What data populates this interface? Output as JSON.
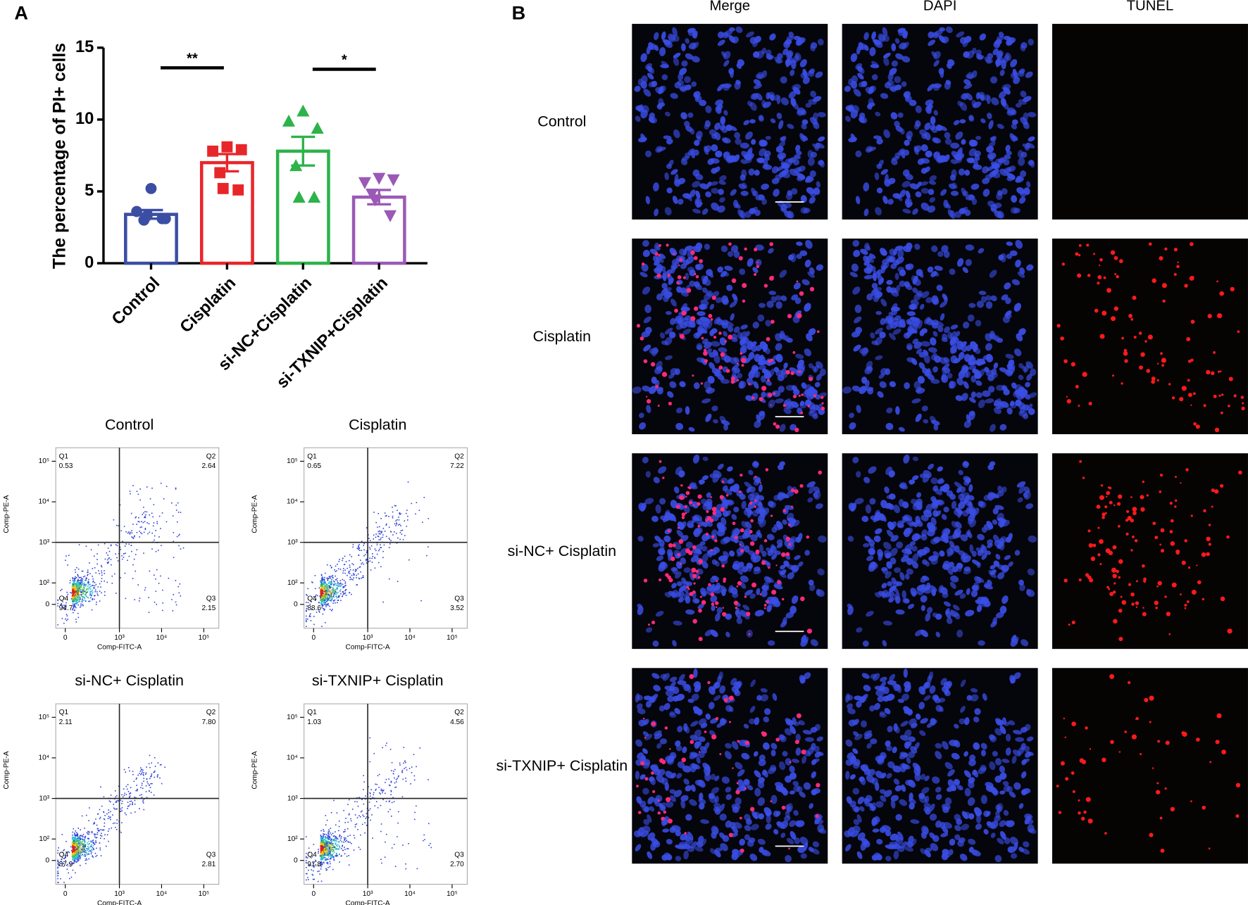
{
  "panel_labels": [
    "A",
    "B"
  ],
  "chart_data": {
    "type": "bar",
    "ylabel": "The percentage of PI+ cells",
    "categories": [
      "Control",
      "Cisplatin",
      "si-NC+Cisplatin",
      "si-TXNIP+Cisplatin"
    ],
    "values": [
      3.4,
      7.0,
      7.8,
      4.6
    ],
    "errors": [
      0.3,
      0.6,
      1.0,
      0.5
    ],
    "colors": [
      "#3b4ea3",
      "#e8262a",
      "#2db34a",
      "#9b59b6"
    ],
    "markers": [
      "circle",
      "square",
      "triangle-up",
      "triangle-down"
    ],
    "points": [
      [
        5.2,
        3.6,
        3.1,
        3.0,
        3.3,
        3.1
      ],
      [
        8.1,
        7.8,
        7.9,
        6.3,
        5.2,
        5.1
      ],
      [
        10.6,
        9.9,
        9.4,
        6.8,
        4.6,
        4.6
      ],
      [
        5.9,
        5.6,
        5.8,
        4.8,
        4.4,
        3.3
      ]
    ],
    "ylim": [
      0,
      15
    ],
    "yticks": [
      0,
      5,
      10,
      15
    ],
    "annotations": [
      {
        "label": "**",
        "from": 0,
        "to": 1,
        "y": 13.6
      },
      {
        "label": "*",
        "from": 2,
        "to": 3,
        "y": 13.5
      }
    ]
  },
  "flow": {
    "xlabel": "Comp-FITC-A",
    "ylabel": "Comp-PE-A",
    "scale": "biexponential",
    "xticks": [
      0,
      {
        "value": 1000,
        "label": "10³"
      },
      {
        "value": 10000,
        "label": "10⁴"
      },
      {
        "value": 100000,
        "label": "10⁵"
      }
    ],
    "yticks": [
      0,
      {
        "value": 100,
        "label": "10²"
      },
      {
        "value": 1000,
        "label": "10³"
      },
      {
        "value": 10000,
        "label": "10⁴"
      },
      {
        "value": 100000,
        "label": "10⁵"
      }
    ],
    "gate": [
      1000,
      1000
    ],
    "plots": [
      {
        "title": "Control",
        "quadrants": [
          {
            "name": "Q1",
            "value": 0.53
          },
          {
            "name": "Q2",
            "value": 2.64
          },
          {
            "name": "Q3",
            "value": 2.15
          },
          {
            "name": "Q4",
            "value": 94.7
          }
        ]
      },
      {
        "title": "Cisplatin",
        "quadrants": [
          {
            "name": "Q1",
            "value": 0.65
          },
          {
            "name": "Q2",
            "value": 7.22
          },
          {
            "name": "Q3",
            "value": 3.52
          },
          {
            "name": "Q4",
            "value": 88.6
          }
        ]
      },
      {
        "title": "si-NC+ Cisplatin",
        "quadrants": [
          {
            "name": "Q1",
            "value": 2.11
          },
          {
            "name": "Q2",
            "value": 7.8,
            "label": "7.80"
          },
          {
            "name": "Q3",
            "value": 2.81
          },
          {
            "name": "Q4",
            "value": 87.9
          }
        ]
      },
      {
        "title": "si-TXNIP+ Cisplatin",
        "quadrants": [
          {
            "name": "Q1",
            "value": 1.03
          },
          {
            "name": "Q2",
            "value": 4.56
          },
          {
            "name": "Q3",
            "value": 2.7,
            "label": "2.70"
          },
          {
            "name": "Q4",
            "value": 91.8
          }
        ]
      }
    ]
  },
  "micrographs": {
    "columns": [
      "Merge",
      "DAPI",
      "TUNEL"
    ],
    "rows": [
      "Control",
      "Cisplatin",
      "si-NC+ Cisplatin",
      "si-TXNIP+ Cisplatin"
    ]
  }
}
